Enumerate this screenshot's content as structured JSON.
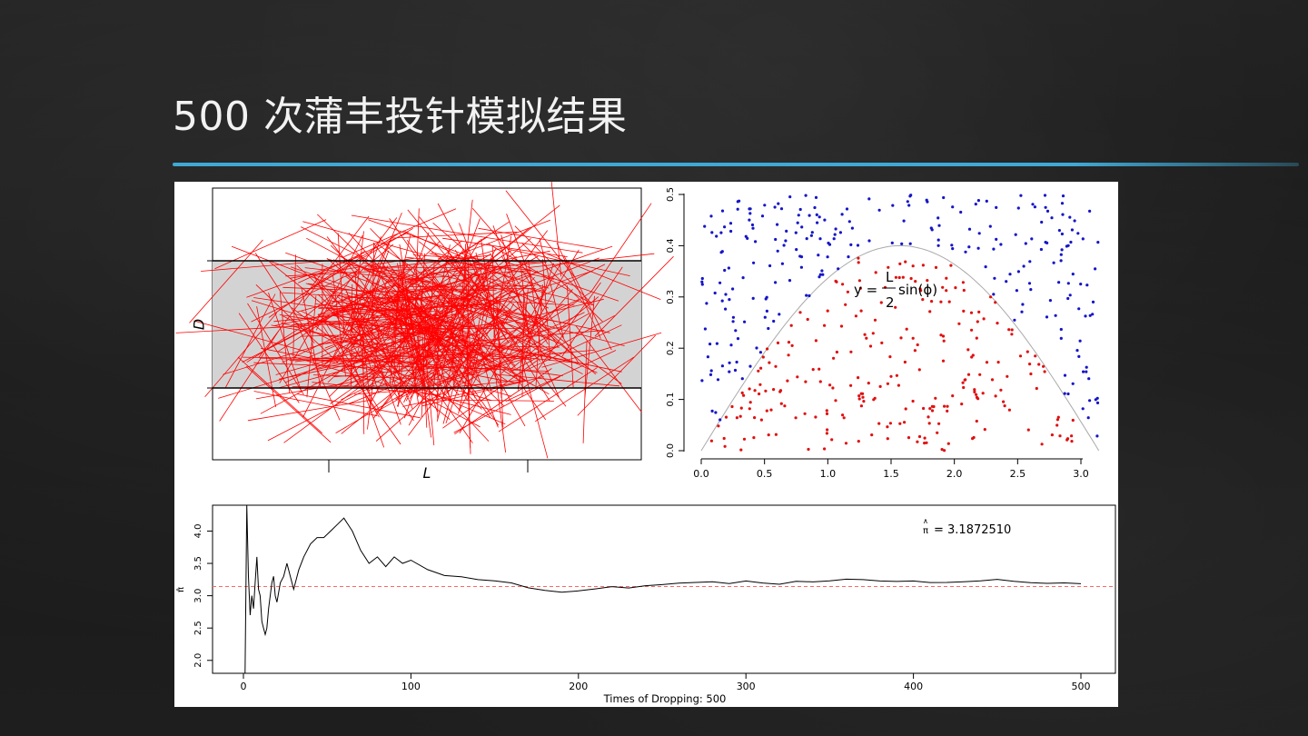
{
  "slide": {
    "title": "500 次蒲丰投针模拟结果"
  },
  "colors": {
    "accent": "#3fa9d6",
    "needle": "#ff0000",
    "hit": "#e01010",
    "miss": "#1515c8",
    "ref_line": "#ff6666"
  },
  "chart_data": [
    {
      "type": "scatter",
      "description_label": "needle simulation",
      "xlabel": "L",
      "ylabel": "D",
      "needles": 500,
      "strip_fill": "#d3d3d3"
    },
    {
      "type": "scatter",
      "xlabel": "",
      "ylabel": "",
      "xlim": [
        0,
        3.14159
      ],
      "ylim": [
        0,
        0.5
      ],
      "x_ticks": [
        "0.0",
        "0.5",
        "1.0",
        "1.5",
        "2.0",
        "2.5",
        "3.0"
      ],
      "y_ticks": [
        "0.0",
        "0.1",
        "0.2",
        "0.3",
        "0.4",
        "0.5"
      ],
      "curve": "y = L/2 sin(φ)",
      "formula": {
        "y": "y =",
        "num": "L",
        "den": "2",
        "fn": "sin(ϕ)"
      },
      "points": 500
    },
    {
      "type": "line",
      "xlabel": "Times of Dropping: 500",
      "ylabel": "π̂",
      "xlim": [
        0,
        500
      ],
      "ylim": [
        1.8,
        4.4
      ],
      "x_ticks": [
        "0",
        "100",
        "200",
        "300",
        "400",
        "500"
      ],
      "y_ticks": [
        "2.0",
        "2.5",
        "3.0",
        "3.5",
        "4.0"
      ],
      "reference": 3.14159,
      "final_estimate": "π̂ = 3.1872510",
      "estimate_label": "= 3.1872510",
      "series": [
        {
          "x": [
            1,
            2,
            3,
            4,
            5,
            6,
            7,
            8,
            9,
            10,
            11,
            12,
            13,
            14,
            15,
            16,
            17,
            18,
            19,
            20,
            22,
            24,
            26,
            28,
            30,
            33,
            36,
            40,
            44,
            48,
            52,
            56,
            60,
            65,
            70,
            75,
            80,
            85,
            90,
            95,
            100,
            110,
            120,
            130,
            140,
            150,
            160,
            170,
            180,
            190,
            200,
            210,
            220,
            230,
            240,
            250,
            260,
            270,
            280,
            290,
            300,
            310,
            320,
            330,
            340,
            350,
            360,
            370,
            380,
            390,
            400,
            410,
            420,
            430,
            440,
            450,
            460,
            470,
            480,
            490,
            500
          ],
          "y": [
            1.8,
            4.4,
            3.3,
            2.7,
            3.0,
            2.8,
            3.2,
            3.6,
            3.1,
            3.0,
            2.6,
            2.5,
            2.4,
            2.5,
            2.8,
            3.0,
            3.2,
            3.3,
            3.0,
            2.9,
            3.2,
            3.3,
            3.5,
            3.3,
            3.1,
            3.4,
            3.6,
            3.8,
            3.9,
            3.9,
            4.0,
            4.1,
            4.2,
            4.0,
            3.7,
            3.5,
            3.6,
            3.45,
            3.6,
            3.5,
            3.55,
            3.4,
            3.3,
            3.28,
            3.25,
            3.22,
            3.2,
            3.12,
            3.08,
            3.05,
            3.08,
            3.12,
            3.14,
            3.13,
            3.15,
            3.18,
            3.2,
            3.22,
            3.21,
            3.2,
            3.22,
            3.2,
            3.18,
            3.21,
            3.22,
            3.24,
            3.25,
            3.26,
            3.24,
            3.23,
            3.22,
            3.21,
            3.22,
            3.21,
            3.22,
            3.24,
            3.23,
            3.21,
            3.2,
            3.2,
            3.187
          ]
        }
      ]
    }
  ]
}
